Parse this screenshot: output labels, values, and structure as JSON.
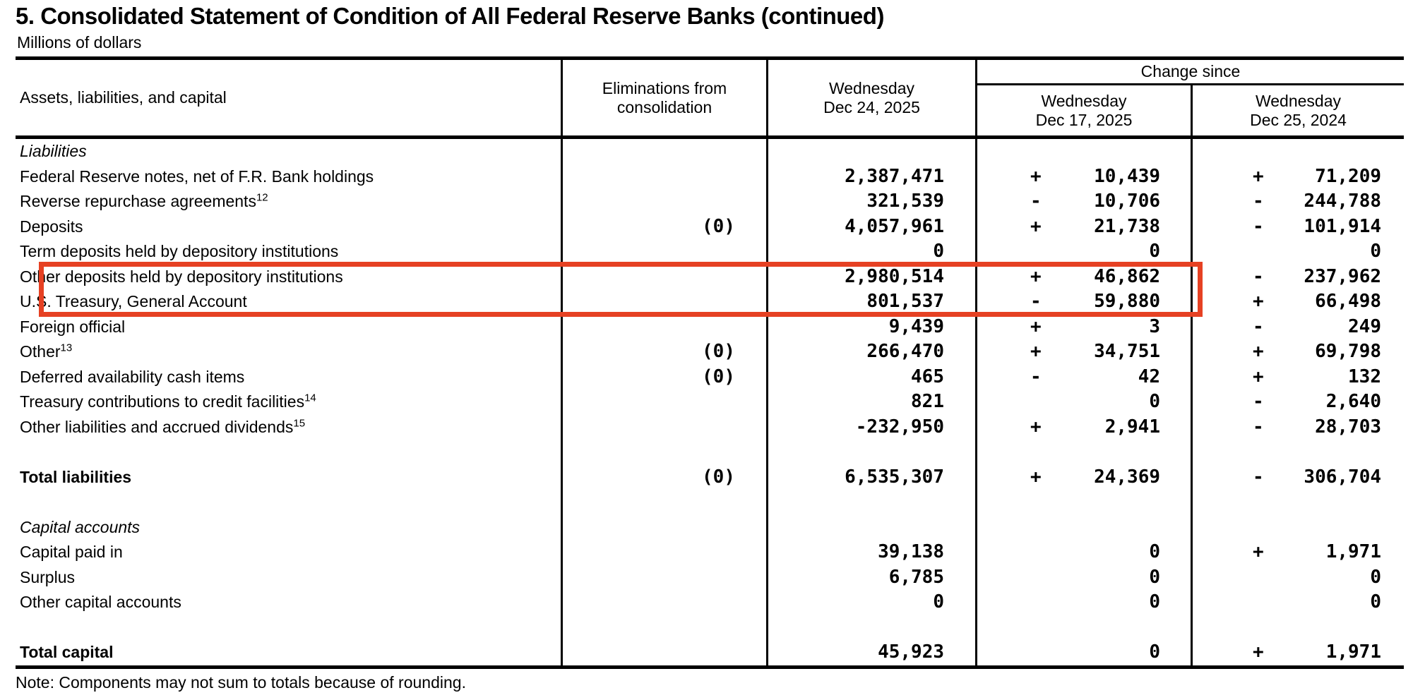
{
  "title": "5. Consolidated Statement of Condition of All Federal Reserve Banks (continued)",
  "subtitle": "Millions of dollars",
  "note": "Note: Components may not sum to totals because of rounding.",
  "header": {
    "label": "Assets, liabilities, and capital",
    "eliminations": [
      "Eliminations from",
      "consolidation"
    ],
    "current": [
      "Wednesday",
      "Dec 24, 2025"
    ],
    "change_since": "Change since",
    "change_cols": [
      [
        "Wednesday",
        "Dec 17, 2025"
      ],
      [
        "Wednesday",
        "Dec 25, 2024"
      ]
    ]
  },
  "highlight": {
    "color": "#e64123",
    "rows": [
      "Other deposits held by depository institutions",
      "U.S. Treasury, General Account"
    ]
  },
  "rows": [
    {
      "label": "Liabilities",
      "style": "section-italic",
      "indent": 0
    },
    {
      "label": "Federal Reserve notes, net of F.R. Bank holdings",
      "indent": 1,
      "dec24": "2,387,471",
      "chg17": {
        "sign": "+",
        "value": "10,439"
      },
      "chg24": {
        "sign": "+",
        "value": "71,209"
      }
    },
    {
      "label": "Reverse repurchase agreements",
      "sup": "12",
      "indent": 1,
      "dec24": "321,539",
      "chg17": {
        "sign": "-",
        "value": "10,706"
      },
      "chg24": {
        "sign": "-",
        "value": "244,788"
      }
    },
    {
      "label": "Deposits",
      "indent": 1,
      "elim": "(0)",
      "dec24": "4,057,961",
      "chg17": {
        "sign": "+",
        "value": "21,738"
      },
      "chg24": {
        "sign": "-",
        "value": "101,914"
      }
    },
    {
      "label": "Term deposits held by depository institutions",
      "indent": 2,
      "dec24": "0",
      "chg17": {
        "value": "0"
      },
      "chg24": {
        "value": "0"
      }
    },
    {
      "label": "Other deposits held by depository institutions",
      "indent": 2,
      "dec24": "2,980,514",
      "chg17": {
        "sign": "+",
        "value": "46,862"
      },
      "chg24": {
        "sign": "-",
        "value": "237,962"
      },
      "highlighted": true
    },
    {
      "label": "U.S. Treasury, General Account",
      "indent": 2,
      "dec24": "801,537",
      "chg17": {
        "sign": "-",
        "value": "59,880"
      },
      "chg24": {
        "sign": "+",
        "value": "66,498"
      },
      "highlighted": true
    },
    {
      "label": "Foreign official",
      "indent": 2,
      "dec24": "9,439",
      "chg17": {
        "sign": "+",
        "value": "3"
      },
      "chg24": {
        "sign": "-",
        "value": "249"
      }
    },
    {
      "label": "Other",
      "sup": "13",
      "indent": 2,
      "elim": "(0)",
      "dec24": "266,470",
      "chg17": {
        "sign": "+",
        "value": "34,751"
      },
      "chg24": {
        "sign": "+",
        "value": "69,798"
      }
    },
    {
      "label": "Deferred availability cash items",
      "indent": 1,
      "elim": "(0)",
      "dec24": "465",
      "chg17": {
        "sign": "-",
        "value": "42"
      },
      "chg24": {
        "sign": "+",
        "value": "132"
      }
    },
    {
      "label": "Treasury contributions to credit facilities",
      "sup": "14",
      "indent": 1,
      "dec24": "821",
      "chg17": {
        "value": "0"
      },
      "chg24": {
        "sign": "-",
        "value": "2,640"
      }
    },
    {
      "label": "Other liabilities and accrued dividends",
      "sup": "15",
      "indent": 1,
      "dec24": "-232,950",
      "chg17": {
        "sign": "+",
        "value": "2,941"
      },
      "chg24": {
        "sign": "-",
        "value": "28,703"
      }
    },
    {
      "style": "blank"
    },
    {
      "label": "Total liabilities",
      "style": "bold",
      "indent": 0,
      "elim": "(0)",
      "dec24": "6,535,307",
      "chg17": {
        "sign": "+",
        "value": "24,369"
      },
      "chg24": {
        "sign": "-",
        "value": "306,704"
      }
    },
    {
      "style": "blank"
    },
    {
      "label": "Capital accounts",
      "style": "section-italic",
      "indent": 0
    },
    {
      "label": "Capital paid in",
      "indent": 1,
      "dec24": "39,138",
      "chg17": {
        "value": "0"
      },
      "chg24": {
        "sign": "+",
        "value": "1,971"
      }
    },
    {
      "label": "Surplus",
      "indent": 1,
      "dec24": "6,785",
      "chg17": {
        "value": "0"
      },
      "chg24": {
        "value": "0"
      }
    },
    {
      "label": "Other capital accounts",
      "indent": 1,
      "dec24": "0",
      "chg17": {
        "value": "0"
      },
      "chg24": {
        "value": "0"
      }
    },
    {
      "style": "blank"
    },
    {
      "label": "Total capital",
      "style": "bold",
      "indent": 0,
      "dec24": "45,923",
      "chg17": {
        "value": "0"
      },
      "chg24": {
        "sign": "+",
        "value": "1,971"
      }
    }
  ]
}
